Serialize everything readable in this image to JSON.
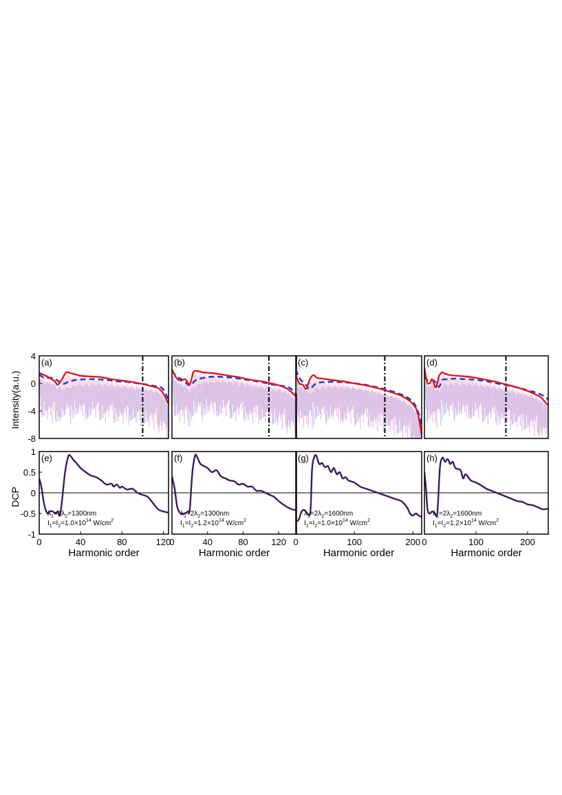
{
  "figure": {
    "ylabel_top": "Intensity(a.u.)",
    "ylabel_bottom": "DCP",
    "xlabel": "Harmonic order"
  },
  "colors": {
    "red_envelope": "#e8141b",
    "blue_envelope": "#1f3fdc",
    "red_raw": "#f2a6cc",
    "blue_raw": "#b9c3f5",
    "dcp_line": "#3d1a5c",
    "cutoff_line": "#000000"
  },
  "chart_data": [
    {
      "panel": "(a)",
      "type": "line",
      "xlim": [
        0,
        125
      ],
      "ylim": [
        -8,
        4
      ],
      "yticks": [
        4,
        0,
        -4,
        -8
      ],
      "cutoff": 100,
      "series": [
        {
          "style": "solid-red",
          "x": [
            0,
            5,
            10,
            15,
            18,
            22,
            26,
            30,
            35,
            40,
            50,
            60,
            70,
            80,
            90,
            100,
            108,
            115,
            120,
            125
          ],
          "y": [
            1.5,
            1.2,
            0.8,
            0.3,
            -0.2,
            0.6,
            1.6,
            1.5,
            1.3,
            1.1,
            1.0,
            0.9,
            0.6,
            0.4,
            0.2,
            -0.1,
            -0.4,
            -0.7,
            -1.5,
            -3.0
          ]
        },
        {
          "style": "dashed-blue",
          "x": [
            0,
            5,
            12,
            18,
            22,
            28,
            35,
            45,
            55,
            65,
            75,
            85,
            95,
            105,
            112,
            118,
            122,
            125
          ],
          "y": [
            1.3,
            0.8,
            0.8,
            0.4,
            -0.1,
            0.2,
            0.5,
            0.6,
            0.6,
            0.5,
            0.3,
            0.2,
            0.0,
            -0.2,
            -0.4,
            -0.6,
            -1.4,
            -2.5
          ]
        }
      ]
    },
    {
      "panel": "(b)",
      "type": "line",
      "xlim": [
        0,
        140
      ],
      "ylim": [
        -8,
        4
      ],
      "yticks": [
        4,
        0,
        -4,
        -8
      ],
      "cutoff": 109,
      "series": [
        {
          "style": "solid-red",
          "x": [
            0,
            5,
            10,
            15,
            20,
            24,
            28,
            35,
            45,
            55,
            65,
            75,
            85,
            95,
            105,
            115,
            125,
            132,
            140
          ],
          "y": [
            2.0,
            0.8,
            0.4,
            0.6,
            -0.1,
            1.6,
            1.8,
            1.6,
            1.5,
            1.3,
            1.1,
            0.9,
            0.6,
            0.4,
            0.2,
            -0.1,
            -0.5,
            -1.0,
            -2.0
          ]
        },
        {
          "style": "dashed-blue",
          "x": [
            0,
            5,
            12,
            20,
            26,
            32,
            40,
            50,
            60,
            70,
            80,
            90,
            100,
            110,
            120,
            130,
            136,
            140
          ],
          "y": [
            1.8,
            1.0,
            0.5,
            -0.3,
            0.4,
            0.7,
            0.9,
            1.0,
            0.9,
            0.8,
            0.6,
            0.4,
            0.2,
            -0.1,
            -0.3,
            -0.5,
            -1.0,
            -1.6
          ]
        }
      ]
    },
    {
      "panel": "(c)",
      "type": "line",
      "xlim": [
        0,
        215
      ],
      "ylim": [
        -8,
        4
      ],
      "yticks": [
        4,
        0,
        -4,
        -8
      ],
      "cutoff": 152,
      "series": [
        {
          "style": "solid-red",
          "x": [
            0,
            6,
            12,
            18,
            24,
            30,
            36,
            45,
            60,
            80,
            100,
            120,
            140,
            160,
            180,
            195,
            205,
            210,
            215
          ],
          "y": [
            1.2,
            0.0,
            -0.2,
            -0.8,
            0.6,
            1.2,
            0.8,
            0.7,
            0.5,
            0.3,
            0.0,
            -0.3,
            -0.7,
            -1.2,
            -1.8,
            -2.6,
            -3.6,
            -5.0,
            -7.5
          ]
        },
        {
          "style": "dashed-blue",
          "x": [
            0,
            6,
            12,
            18,
            24,
            35,
            50,
            70,
            90,
            110,
            130,
            150,
            170,
            185,
            198,
            206,
            212,
            215
          ],
          "y": [
            2.0,
            0.8,
            0.2,
            -0.3,
            -0.8,
            0.0,
            0.2,
            0.2,
            0.1,
            -0.1,
            -0.4,
            -0.8,
            -1.3,
            -1.8,
            -2.5,
            -3.5,
            -5.0,
            -6.5
          ]
        }
      ]
    },
    {
      "panel": "(d)",
      "type": "line",
      "xlim": [
        0,
        240
      ],
      "ylim": [
        -8,
        4
      ],
      "yticks": [
        4,
        0,
        -4,
        -8
      ],
      "cutoff": 158,
      "series": [
        {
          "style": "solid-red",
          "x": [
            0,
            5,
            10,
            15,
            22,
            28,
            34,
            40,
            50,
            65,
            80,
            100,
            120,
            140,
            160,
            180,
            200,
            215,
            225,
            235,
            240
          ],
          "y": [
            2.3,
            0.2,
            0.0,
            0.6,
            -0.6,
            1.0,
            1.6,
            1.4,
            1.2,
            1.1,
            1.0,
            0.8,
            0.5,
            0.2,
            -0.2,
            -0.6,
            -1.1,
            -1.6,
            -2.0,
            -2.8,
            -3.2
          ]
        },
        {
          "style": "dashed-blue",
          "x": [
            0,
            5,
            12,
            20,
            28,
            35,
            45,
            60,
            80,
            100,
            120,
            140,
            160,
            180,
            200,
            215,
            225,
            235,
            240
          ],
          "y": [
            1.0,
            0.5,
            0.5,
            0.3,
            -0.5,
            0.5,
            0.6,
            0.7,
            0.6,
            0.5,
            0.3,
            0.0,
            -0.3,
            -0.6,
            -1.0,
            -1.3,
            -1.6,
            -2.0,
            -2.4
          ]
        }
      ]
    },
    {
      "panel": "(e)",
      "type": "line",
      "xlim": [
        0,
        125
      ],
      "ylim": [
        -1,
        1
      ],
      "yticks": [
        1,
        0.5,
        0,
        -0.5,
        -1
      ],
      "xticks": [
        0,
        40,
        80,
        120
      ],
      "annotation": [
        "λ1=2λ2=1300nm",
        "I1=I2=1.0×10^14 W/cm^2"
      ],
      "series": [
        {
          "style": "solid-purple",
          "x": [
            0,
            2,
            5,
            8,
            10,
            13,
            16,
            18,
            20,
            22,
            25,
            28,
            30,
            33,
            36,
            40,
            45,
            50,
            55,
            60,
            65,
            70,
            72,
            75,
            78,
            80,
            85,
            90,
            95,
            100,
            105,
            110,
            115,
            120,
            125
          ],
          "y": [
            0.35,
            0.15,
            -0.3,
            -0.5,
            -0.45,
            -0.45,
            -0.5,
            -0.45,
            -0.55,
            -0.2,
            0.5,
            0.88,
            0.9,
            0.8,
            0.72,
            0.6,
            0.5,
            0.42,
            0.38,
            0.3,
            0.2,
            0.22,
            0.15,
            0.2,
            0.12,
            0.15,
            0.08,
            0.1,
            0.0,
            -0.05,
            -0.1,
            -0.25,
            -0.4,
            -0.45,
            -0.48
          ]
        }
      ]
    },
    {
      "panel": "(f)",
      "type": "line",
      "xlim": [
        0,
        140
      ],
      "ylim": [
        -1,
        1
      ],
      "yticks": [
        1,
        0.5,
        0,
        -0.5,
        -1
      ],
      "xticks": [
        0,
        40,
        80,
        120
      ],
      "annotation": [
        "λ1=2λ2=1300nm",
        "I1=I2=1.2×10^14 W/cm^2"
      ],
      "series": [
        {
          "style": "solid-purple",
          "x": [
            0,
            3,
            6,
            10,
            14,
            18,
            20,
            23,
            26,
            28,
            32,
            36,
            40,
            45,
            50,
            55,
            60,
            65,
            70,
            75,
            80,
            85,
            90,
            95,
            100,
            105,
            110,
            115,
            120,
            125,
            130,
            135,
            140
          ],
          "y": [
            0.4,
            0.1,
            -0.35,
            -0.5,
            -0.5,
            -0.45,
            -0.4,
            0.5,
            0.9,
            0.88,
            0.7,
            0.65,
            0.6,
            0.5,
            0.55,
            0.4,
            0.35,
            0.3,
            0.28,
            0.2,
            0.22,
            0.15,
            0.15,
            0.05,
            0.05,
            0.0,
            -0.05,
            -0.1,
            -0.2,
            -0.28,
            -0.35,
            -0.4,
            -0.42
          ]
        }
      ]
    },
    {
      "panel": "(g)",
      "type": "line",
      "xlim": [
        0,
        215
      ],
      "ylim": [
        -1,
        1
      ],
      "yticks": [
        1,
        0.5,
        0,
        -0.5,
        -1
      ],
      "xticks": [
        0,
        100,
        200
      ],
      "annotation": [
        "λ1=2λ2=1600nm",
        "I1=I2=1.0×10^14 W/cm^2"
      ],
      "series": [
        {
          "style": "solid-purple",
          "x": [
            0,
            5,
            10,
            15,
            20,
            25,
            28,
            32,
            35,
            40,
            45,
            50,
            55,
            60,
            65,
            70,
            75,
            80,
            85,
            90,
            100,
            110,
            120,
            130,
            140,
            150,
            160,
            170,
            180,
            190,
            195,
            200,
            205,
            210,
            215
          ],
          "y": [
            -0.7,
            -0.65,
            -0.45,
            -0.42,
            -0.5,
            -0.45,
            0.6,
            0.88,
            0.9,
            0.7,
            0.72,
            0.62,
            0.65,
            0.5,
            0.6,
            0.45,
            0.5,
            0.35,
            0.38,
            0.3,
            0.25,
            0.15,
            0.1,
            0.05,
            0.0,
            -0.05,
            -0.1,
            -0.15,
            -0.2,
            -0.35,
            -0.5,
            -0.55,
            -0.5,
            -0.55,
            -0.58
          ]
        }
      ]
    },
    {
      "panel": "(h)",
      "type": "line",
      "xlim": [
        0,
        240
      ],
      "ylim": [
        -1,
        1
      ],
      "yticks": [
        1,
        0.5,
        0,
        -0.5,
        -1
      ],
      "xticks": [
        0,
        100,
        200
      ],
      "annotation": [
        "λ1=2λ2=1600nm",
        "I1=I2=1.2×10^14 W/cm^2"
      ],
      "series": [
        {
          "style": "solid-purple",
          "x": [
            0,
            3,
            6,
            10,
            15,
            20,
            25,
            30,
            35,
            40,
            45,
            50,
            55,
            60,
            70,
            75,
            80,
            90,
            100,
            110,
            120,
            130,
            140,
            150,
            160,
            170,
            180,
            190,
            200,
            210,
            220,
            230,
            240
          ],
          "y": [
            0.5,
            0.1,
            -0.4,
            -0.5,
            -0.45,
            -0.5,
            -0.48,
            0.6,
            0.85,
            0.75,
            0.82,
            0.7,
            0.75,
            0.6,
            0.55,
            0.35,
            0.45,
            0.3,
            0.25,
            0.18,
            0.1,
            0.05,
            0.0,
            -0.05,
            -0.1,
            -0.15,
            -0.2,
            -0.22,
            -0.28,
            -0.3,
            -0.35,
            -0.4,
            -0.38
          ]
        }
      ]
    }
  ]
}
